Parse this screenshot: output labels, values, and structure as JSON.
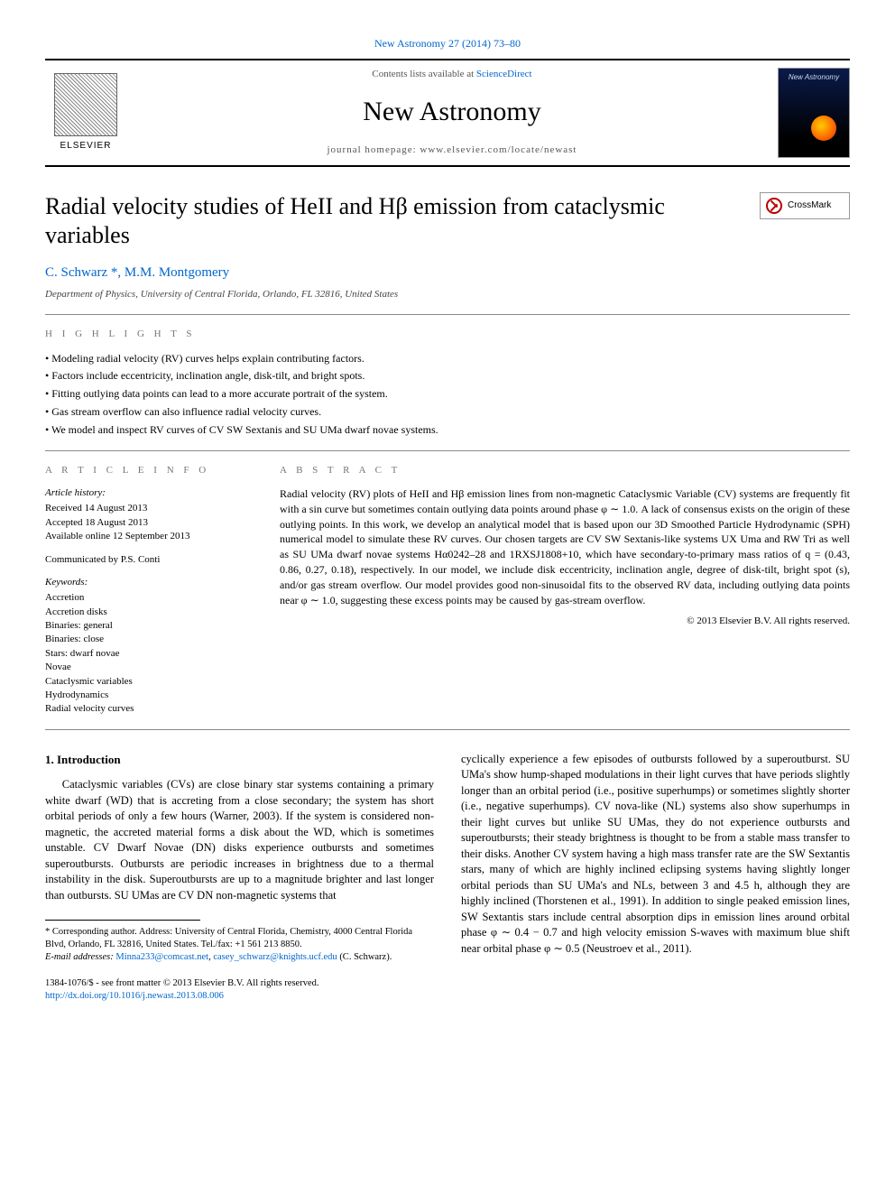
{
  "top_link_text": "New Astronomy 27 (2014) 73–80",
  "masthead": {
    "contents_prefix": "Contents lists available at ",
    "contents_link": "ScienceDirect",
    "journal_name": "New Astronomy",
    "homepage_prefix": "journal homepage: ",
    "homepage_url": "www.elsevier.com/locate/newast",
    "cover_label": "New Astronomy",
    "elsevier_label": "ELSEVIER"
  },
  "crossmark_label": "CrossMark",
  "title": "Radial velocity studies of HeII and Hβ emission from cataclysmic variables",
  "authors_html": "C. Schwarz *, M.M. Montgomery",
  "affiliation": "Department of Physics, University of Central Florida, Orlando, FL 32816, United States",
  "highlights_label": "H I G H L I G H T S",
  "highlights": [
    "Modeling radial velocity (RV) curves helps explain contributing factors.",
    "Factors include eccentricity, inclination angle, disk-tilt, and bright spots.",
    "Fitting outlying data points can lead to a more accurate portrait of the system.",
    "Gas stream overflow can also influence radial velocity curves.",
    "We model and inspect RV curves of CV SW Sextanis and SU UMa dwarf novae systems."
  ],
  "article_info_label": "A R T I C L E   I N F O",
  "abstract_label": "A B S T R A C T",
  "history": {
    "header": "Article history:",
    "received": "Received 14 August 2013",
    "accepted": "Accepted 18 August 2013",
    "online": "Available online 12 September 2013"
  },
  "communicated": "Communicated by P.S. Conti",
  "keywords_header": "Keywords:",
  "keywords": [
    "Accretion",
    "Accretion disks",
    "Binaries: general",
    "Binaries: close",
    "Stars: dwarf novae",
    "Novae",
    "Cataclysmic variables",
    "Hydrodynamics",
    "Radial velocity curves"
  ],
  "abstract": "Radial velocity (RV) plots of HeII and Hβ emission lines from non-magnetic Cataclysmic Variable (CV) systems are frequently fit with a sin curve but sometimes contain outlying data points around phase φ ∼ 1.0. A lack of consensus exists on the origin of these outlying points. In this work, we develop an analytical model that is based upon our 3D Smoothed Particle Hydrodynamic (SPH) numerical model to simulate these RV curves. Our chosen targets are CV SW Sextanis-like systems UX Uma and RW Tri as well as SU UMa dwarf novae systems Hα0242–28 and 1RXSJ1808+10, which have secondary-to-primary mass ratios of q = (0.43, 0.86, 0.27, 0.18), respectively. In our model, we include disk eccentricity, inclination angle, degree of disk-tilt, bright spot (s), and/or gas stream overflow. Our model provides good non-sinusoidal fits to the observed RV data, including outlying data points near φ ∼ 1.0, suggesting these excess points may be caused by gas-stream overflow.",
  "abstract_copyright": "© 2013 Elsevier B.V. All rights reserved.",
  "intro_heading": "1. Introduction",
  "intro_col1": "Cataclysmic variables (CVs) are close binary star systems containing a primary white dwarf (WD) that is accreting from a close secondary; the system has short orbital periods of only a few hours (Warner, 2003). If the system is considered non-magnetic, the accreted material forms a disk about the WD, which is sometimes unstable. CV Dwarf Novae (DN) disks experience outbursts and sometimes superoutbursts. Outbursts are periodic increases in brightness due to a thermal instability in the disk. Superoutbursts are up to a magnitude brighter and last longer than outbursts. SU UMas are CV DN non-magnetic systems that",
  "intro_col2": "cyclically experience a few episodes of outbursts followed by a superoutburst. SU UMa's show hump-shaped modulations in their light curves that have periods slightly longer than an orbital period (i.e., positive superhumps) or sometimes slightly shorter (i.e., negative superhumps). CV nova-like (NL) systems also show superhumps in their light curves but unlike SU UMas, they do not experience outbursts and superoutbursts; their steady brightness is thought to be from a stable mass transfer to their disks. Another CV system having a high mass transfer rate are the SW Sextantis stars, many of which are highly inclined eclipsing systems having slightly longer orbital periods than SU UMa's and NLs, between 3 and 4.5 h, although they are highly inclined (Thorstenen et al., 1991). In addition to single peaked emission lines, SW Sextantis stars include central absorption dips in emission lines around orbital phase φ ∼ 0.4 − 0.7 and high velocity emission S-waves with maximum blue shift near orbital phase φ ∼ 0.5 (Neustroev et al., 2011).",
  "footnotes": {
    "corr": "* Corresponding author. Address: University of Central Florida, Chemistry, 4000 Central Florida Blvd, Orlando, FL 32816, United States. Tel./fax: +1 561 213 8850.",
    "email_prefix": "E-mail addresses: ",
    "email1": "Minna233@comcast.net",
    "email_sep": ", ",
    "email2": "casey_schwarz@knights.ucf.edu",
    "email_suffix": " (C. Schwarz)."
  },
  "bottom": {
    "issn_line": "1384-1076/$ - see front matter © 2013 Elsevier B.V. All rights reserved.",
    "doi": "http://dx.doi.org/10.1016/j.newast.2013.08.006"
  },
  "colors": {
    "link": "#0066cc",
    "text": "#000000",
    "muted": "#777777",
    "rule": "#888888"
  }
}
